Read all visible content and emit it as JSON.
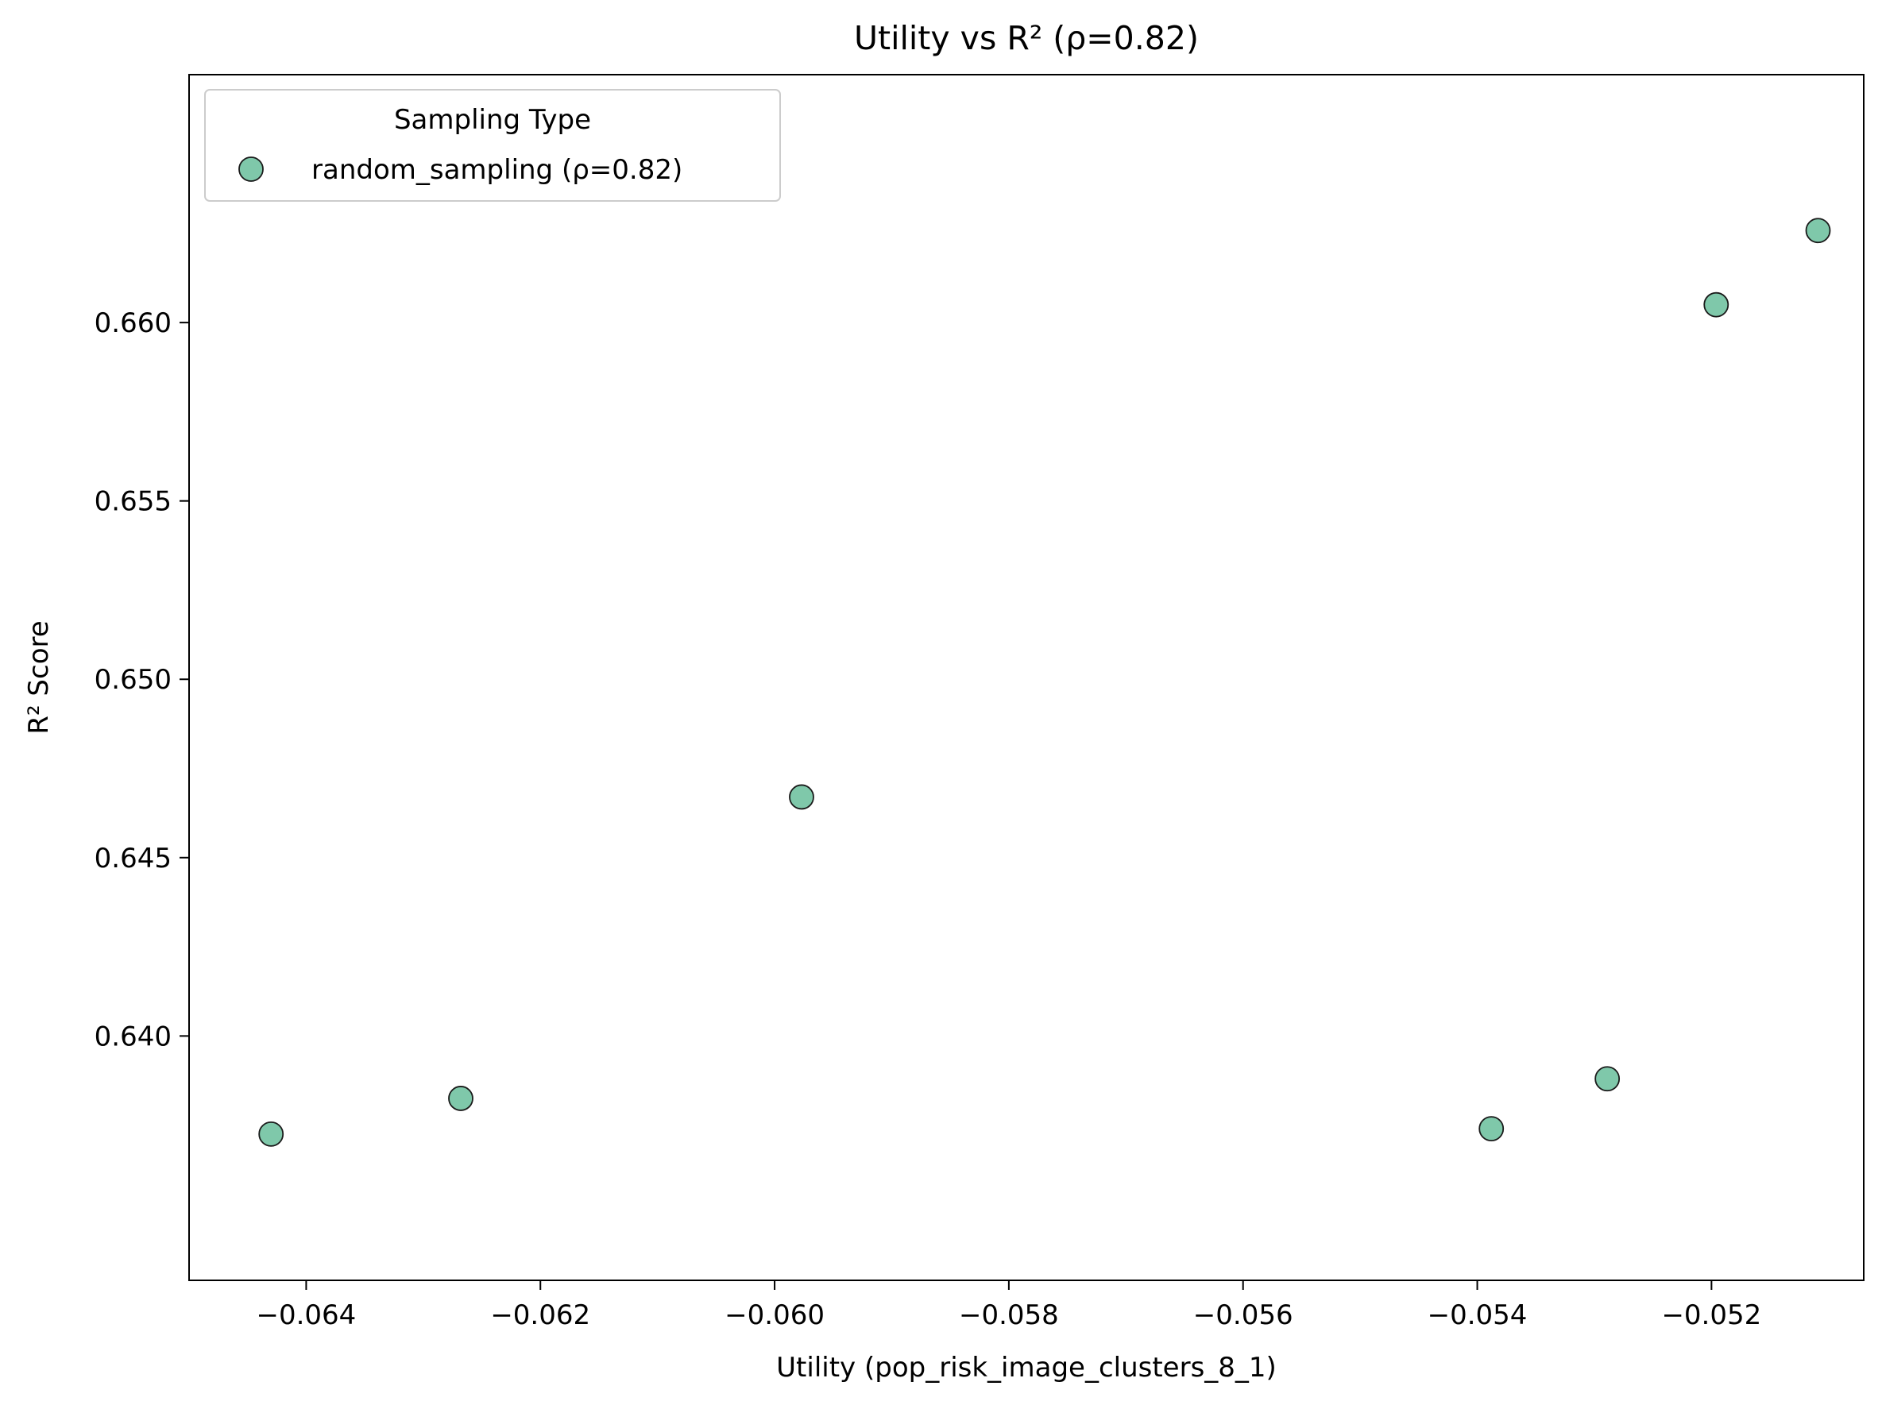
{
  "chart_data": {
    "type": "scatter",
    "title": "Utility vs R² (ρ=0.82)",
    "xlabel": "Utility (pop_risk_image_clusters_8_1)",
    "ylabel": "R² Score",
    "xlim": [
      -0.065,
      -0.0507
    ],
    "ylim": [
      0.63315,
      0.66695
    ],
    "xticks": [
      -0.064,
      -0.062,
      -0.06,
      -0.058,
      -0.056,
      -0.054,
      -0.052
    ],
    "xtick_labels": [
      "−0.064",
      "−0.062",
      "−0.060",
      "−0.058",
      "−0.056",
      "−0.054",
      "−0.052"
    ],
    "yticks": [
      0.64,
      0.645,
      0.65,
      0.655,
      0.66
    ],
    "ytick_labels": [
      "0.640",
      "0.645",
      "0.650",
      "0.655",
      "0.660"
    ],
    "grid": false,
    "legend": {
      "title": "Sampling Type",
      "placement": "upper-left"
    },
    "series": [
      {
        "name": "random_sampling (ρ=0.82)",
        "color": "#7fc8aa",
        "edge_color": "#1a1a1a",
        "points": [
          {
            "x": -0.0643,
            "y": 0.63725
          },
          {
            "x": -0.06268,
            "y": 0.63825
          },
          {
            "x": -0.05977,
            "y": 0.6467
          },
          {
            "x": -0.05388,
            "y": 0.6374
          },
          {
            "x": -0.05289,
            "y": 0.6388
          },
          {
            "x": -0.05196,
            "y": 0.6605
          },
          {
            "x": -0.05109,
            "y": 0.66258
          }
        ]
      }
    ]
  }
}
